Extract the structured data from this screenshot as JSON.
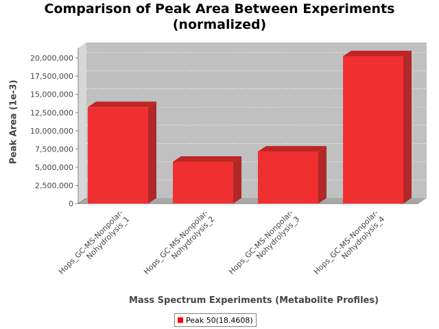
{
  "chart_data": {
    "type": "bar",
    "title": "Comparison of Peak Area Between Experiments\n(normalized)",
    "xlabel": "Mass Spectrum Experiments (Metabolite Profiles)",
    "ylabel": "Peak Area (1e-3)",
    "categories": [
      [
        "Hops_GC-MS-Nonpolar-",
        "Nohydrolysis_1"
      ],
      [
        "Hops_GC-MS-Nonpolar-",
        "Nohydrolysis_2"
      ],
      [
        "Hops_GC-MS-Nonpolar-",
        "Nohydrolysis_3"
      ],
      [
        "Hops_GC-MS-Nonpolar-",
        "Nohydrolysis_4"
      ]
    ],
    "series": [
      {
        "name": "Peak 50(18.4608)",
        "values": [
          13250000,
          5750000,
          7150000,
          20250000
        ]
      }
    ],
    "ylim": [
      0,
      21000000
    ],
    "yticks": [
      0,
      2500000,
      5000000,
      7500000,
      10000000,
      12500000,
      15000000,
      17500000,
      20000000
    ],
    "ytick_labels": [
      "0",
      "2,500,000",
      "5,000,000",
      "7,500,000",
      "10,000,000",
      "12,500,000",
      "15,000,000",
      "17,500,000",
      "20,000,000"
    ],
    "grid": true,
    "legend_position": "bottom",
    "colors": {
      "bar_front": "#f03030",
      "bar_top": "#c02424",
      "bar_side": "#b02828",
      "plot_bg": "#c0c0c0",
      "plot_wall": "#d8d8d8"
    }
  }
}
